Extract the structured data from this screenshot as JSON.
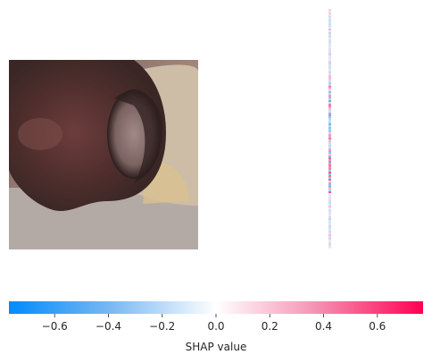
{
  "chart_data": {
    "type": "heatmap",
    "title": "",
    "panels": [
      {
        "name": "input-image",
        "kind": "photo",
        "subject": "close-up photograph of a nose"
      },
      {
        "name": "shap-overlay",
        "kind": "shap-heatmap"
      }
    ],
    "colorbar": {
      "label": "SHAP value",
      "range": [
        -0.77,
        0.77
      ],
      "ticks": [
        -0.6,
        -0.4,
        -0.2,
        0.0,
        0.2,
        0.4,
        0.6
      ],
      "tick_labels": [
        "−0.6",
        "−0.4",
        "−0.2",
        "0.0",
        "0.2",
        "0.4",
        "0.6"
      ],
      "colors": {
        "negative": "#008bfb",
        "zero": "#ffffff",
        "positive": "#ff0052"
      }
    }
  }
}
